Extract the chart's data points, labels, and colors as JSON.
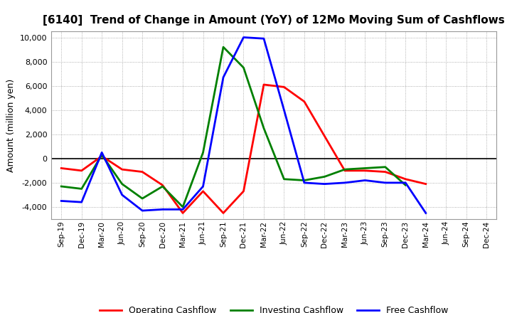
{
  "title": "[6140]  Trend of Change in Amount (YoY) of 12Mo Moving Sum of Cashflows",
  "ylabel": "Amount (million yen)",
  "x_labels": [
    "Sep-19",
    "Dec-19",
    "Mar-20",
    "Jun-20",
    "Sep-20",
    "Dec-20",
    "Mar-21",
    "Jun-21",
    "Sep-21",
    "Dec-21",
    "Mar-22",
    "Jun-22",
    "Sep-22",
    "Dec-22",
    "Mar-23",
    "Jun-23",
    "Sep-23",
    "Dec-23",
    "Mar-24",
    "Jun-24",
    "Sep-24",
    "Dec-24"
  ],
  "operating": [
    -800,
    -1000,
    200,
    -900,
    -1100,
    -2200,
    -4500,
    -2700,
    -4500,
    -2700,
    6100,
    5900,
    4700,
    null,
    -1000,
    -1000,
    -1100,
    -1700,
    -2100,
    null,
    null,
    null
  ],
  "investing": [
    -2300,
    -2500,
    300,
    -2100,
    -3300,
    -2300,
    -4000,
    500,
    9200,
    7500,
    2500,
    -1700,
    -1800,
    -1500,
    -900,
    -800,
    -700,
    -2200,
    null,
    null,
    null,
    null
  ],
  "free": [
    -3500,
    -3600,
    500,
    -3000,
    -4300,
    -4200,
    -4200,
    -2300,
    6700,
    10000,
    9900,
    4000,
    -2000,
    -2100,
    -2000,
    -1800,
    -2000,
    -2000,
    -4500,
    null,
    null,
    null
  ],
  "operating_color": "#FF0000",
  "investing_color": "#008000",
  "free_color": "#0000FF",
  "ylim": [
    -5000,
    10500
  ],
  "yticks": [
    -4000,
    -2000,
    0,
    2000,
    4000,
    6000,
    8000,
    10000
  ],
  "background_color": "#FFFFFF",
  "grid_color": "#999999",
  "legend_labels": [
    "Operating Cashflow",
    "Investing Cashflow",
    "Free Cashflow"
  ]
}
